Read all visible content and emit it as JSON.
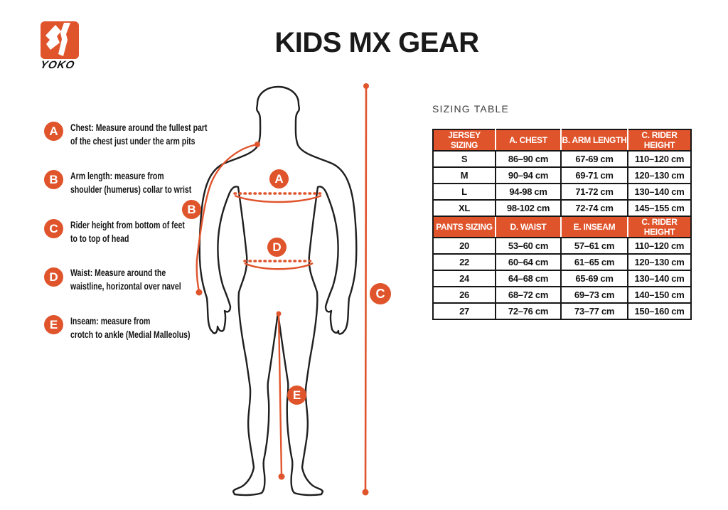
{
  "page": {
    "title": "KIDS MX GEAR"
  },
  "logo": {
    "brand": "YOKO"
  },
  "colors": {
    "accent": "#E0542C",
    "outline": "#1b1b1b",
    "header_text": "#FFFFFF"
  },
  "measurements": {
    "items": [
      {
        "letter": "A",
        "lines": [
          "Chest: Measure around  the fullest part",
          "of the chest just under the arm pits"
        ]
      },
      {
        "letter": "B",
        "lines": [
          "Arm length: measure from",
          "shoulder (humerus) collar to wrist"
        ]
      },
      {
        "letter": "C",
        "lines": [
          "Rider height from bottom of feet",
          "to to top of head"
        ]
      },
      {
        "letter": "D",
        "lines": [
          "Waist: Measure around the",
          "waistline, horizontal over navel"
        ]
      },
      {
        "letter": "E",
        "lines": [
          "Inseam: measure from",
          "crotch to ankle (Medial Malleolus)"
        ]
      }
    ]
  },
  "diagram": {
    "badges": [
      "A",
      "B",
      "C",
      "D",
      "E"
    ]
  },
  "sizing": {
    "heading": "SIZING TABLE",
    "jersey": {
      "headers": [
        "JERSEY SIZING",
        "A. CHEST",
        "B. ARM LENGTH",
        "C. RIDER HEIGHT"
      ],
      "rows": [
        [
          "S",
          "86–90 cm",
          "67-69 cm",
          "110–120 cm"
        ],
        [
          "M",
          "90–94 cm",
          "69-71 cm",
          "120–130 cm"
        ],
        [
          "L",
          "94-98 cm",
          "71-72 cm",
          "130–140 cm"
        ],
        [
          "XL",
          "98-102 cm",
          "72-74 cm",
          "145–155 cm"
        ]
      ]
    },
    "pants": {
      "headers": [
        "PANTS SIZING",
        "D. WAIST",
        "E. INSEAM",
        "C. RIDER HEIGHT"
      ],
      "rows": [
        [
          "20",
          "53–60 cm",
          "57–61 cm",
          "110–120 cm"
        ],
        [
          "22",
          "60–64 cm",
          "61–65 cm",
          "120–130 cm"
        ],
        [
          "24",
          "64–68 cm",
          "65-69 cm",
          "130–140 cm"
        ],
        [
          "26",
          "68–72 cm",
          "69–73 cm",
          "140–150 cm"
        ],
        [
          "27",
          "72–76 cm",
          "73–77 cm",
          "150–160 cm"
        ]
      ]
    }
  }
}
